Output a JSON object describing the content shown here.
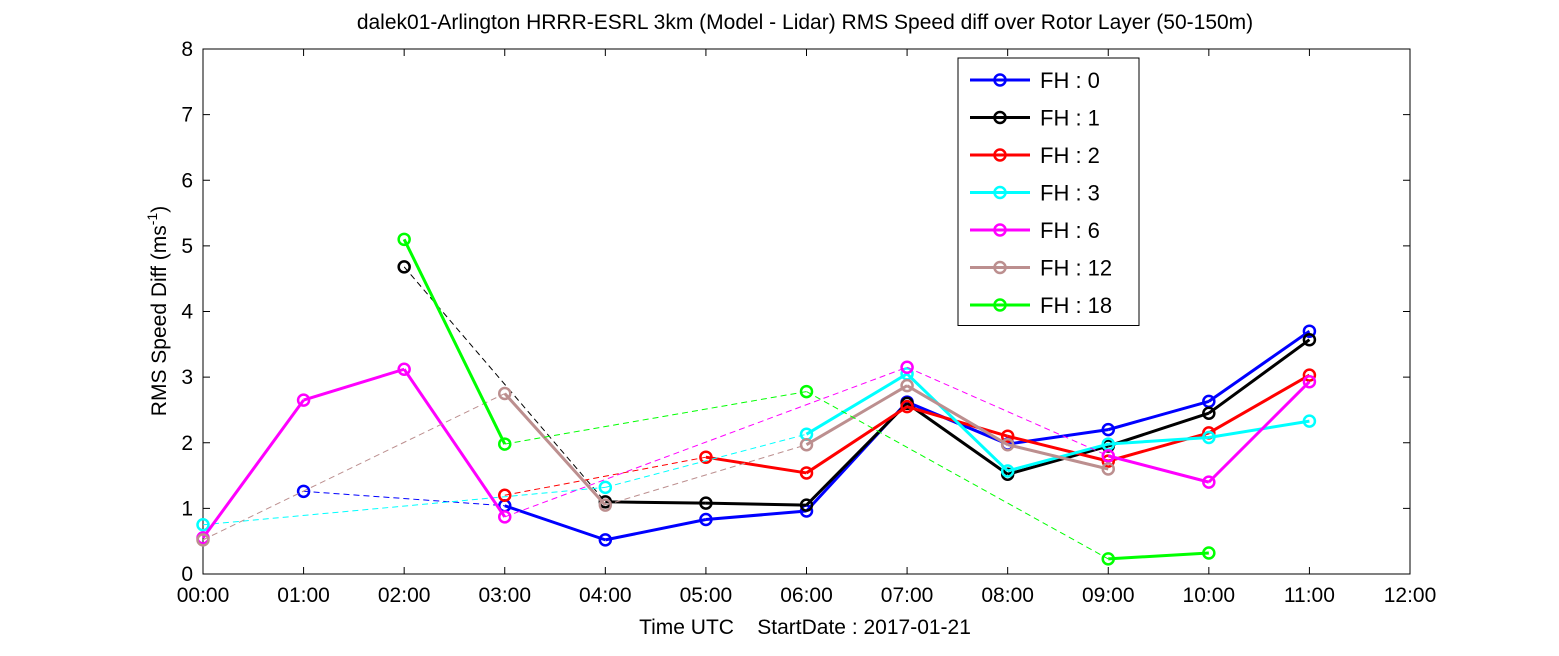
{
  "chart_data": {
    "type": "line",
    "title": "dalek01-Arlington HRRR-ESRL 3km (Model - Lidar) RMS Speed diff over Rotor Layer (50-150m)",
    "ylabel": "RMS Speed Diff (ms",
    "ylabel_sup": "-1",
    "ylabel_close": ")",
    "xlabel": "Time UTC    StartDate : 2017-01-21",
    "x_ticks": [
      "00:00",
      "01:00",
      "02:00",
      "03:00",
      "04:00",
      "05:00",
      "06:00",
      "07:00",
      "08:00",
      "09:00",
      "10:00",
      "11:00",
      "12:00"
    ],
    "y_ticks": [
      "0",
      "1",
      "2",
      "3",
      "4",
      "5",
      "6",
      "7",
      "8"
    ],
    "xlim": [
      0,
      12
    ],
    "ylim": [
      0,
      8
    ],
    "grid": false,
    "legend_position": "top-right",
    "note": "",
    "series": [
      {
        "name": "FH : 0",
        "color": "#0000ff",
        "points": [
          [
            1,
            1.26
          ],
          [
            3,
            1.04
          ],
          [
            4,
            0.52
          ],
          [
            5,
            0.83
          ],
          [
            6,
            0.96
          ],
          [
            7,
            2.62
          ],
          [
            8,
            1.98
          ],
          [
            9,
            2.2
          ],
          [
            10,
            2.63
          ],
          [
            11,
            3.7
          ]
        ]
      },
      {
        "name": "FH : 1",
        "color": "#000000",
        "points": [
          [
            2,
            4.68
          ],
          [
            4,
            1.1
          ],
          [
            5,
            1.08
          ],
          [
            6,
            1.05
          ],
          [
            7,
            2.6
          ],
          [
            8,
            1.52
          ],
          [
            9,
            1.95
          ],
          [
            10,
            2.45
          ],
          [
            11,
            3.57
          ]
        ]
      },
      {
        "name": "FH : 2",
        "color": "#ff0000",
        "points": [
          [
            3,
            1.2
          ],
          [
            5,
            1.78
          ],
          [
            6,
            1.54
          ],
          [
            7,
            2.55
          ],
          [
            8,
            2.1
          ],
          [
            9,
            1.72
          ],
          [
            10,
            2.15
          ],
          [
            11,
            3.03
          ]
        ]
      },
      {
        "name": "FH : 3",
        "color": "#00ffff",
        "points": [
          [
            0,
            0.75
          ],
          [
            4,
            1.32
          ],
          [
            6,
            2.13
          ],
          [
            7,
            3.05
          ],
          [
            8,
            1.57
          ],
          [
            9,
            1.98
          ],
          [
            10,
            2.08
          ],
          [
            11,
            2.33
          ]
        ]
      },
      {
        "name": "FH : 6",
        "color": "#ff00ff",
        "points": [
          [
            0,
            0.55
          ],
          [
            1,
            2.65
          ],
          [
            2,
            3.12
          ],
          [
            3,
            0.87
          ],
          [
            7,
            3.15
          ],
          [
            9,
            1.8
          ],
          [
            10,
            1.4
          ],
          [
            11,
            2.93
          ]
        ]
      },
      {
        "name": "FH : 12",
        "color": "#bc8f8f",
        "points": [
          [
            0,
            0.52
          ],
          [
            3,
            2.75
          ],
          [
            4,
            1.05
          ],
          [
            6,
            1.97
          ],
          [
            7,
            2.87
          ],
          [
            8,
            1.97
          ],
          [
            9,
            1.6
          ]
        ]
      },
      {
        "name": "FH : 18",
        "color": "#00ff00",
        "points": [
          [
            2,
            5.1
          ],
          [
            3,
            1.98
          ],
          [
            6,
            2.78
          ],
          [
            9,
            0.23
          ],
          [
            10,
            0.32
          ]
        ]
      }
    ]
  }
}
